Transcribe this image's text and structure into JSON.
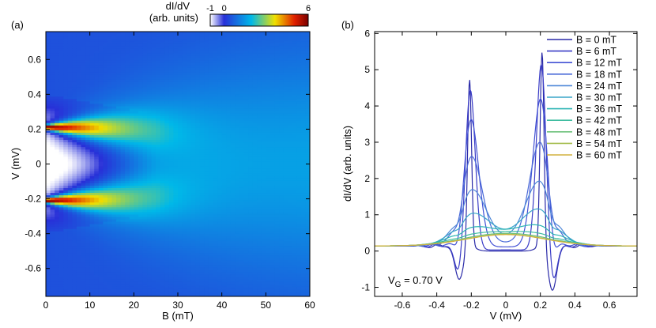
{
  "chart_data": [
    {
      "type": "heatmap",
      "panel_label": "(a)",
      "xlabel": "B (mT)",
      "ylabel": "V (mV)",
      "xlim": [
        0,
        60
      ],
      "ylim": [
        -0.76,
        0.76
      ],
      "x_ticks": [
        0,
        10,
        20,
        30,
        40,
        50,
        60
      ],
      "x_tick_labels": [
        "0",
        "10",
        "20",
        "30",
        "40",
        "50",
        "60"
      ],
      "y_ticks": [
        -0.6,
        -0.4,
        -0.2,
        0,
        0.2,
        0.4,
        0.6
      ],
      "y_tick_labels": [
        "-0.6",
        "-0.4",
        "-0.2",
        "0",
        "0.2",
        "0.4",
        "0.6"
      ],
      "colorbar": {
        "title_line1": "dI/dV",
        "title_line2": "(arb. units)",
        "range": [
          -1,
          6
        ],
        "tick_labels": [
          "-1",
          "0",
          "6"
        ],
        "tick_values": [
          -1,
          0,
          6
        ],
        "colors": [
          "#ffffff",
          "#2830d8",
          "#00b8e8",
          "#f0e000",
          "#e02000",
          "#7a0000"
        ]
      },
      "peak_positions_mV": [
        0.21,
        -0.21
      ],
      "peak_max_value": 6,
      "peak_fade_B_mT": 30,
      "peak_broadening": {
        "sigma0_mV": 0.013,
        "sigma_growth_mV_per_mT": 0.0045
      },
      "gap_region": {
        "half_width_mV": 0.4,
        "closes_at_mT": 25,
        "value": -1
      },
      "background_value": 0.45
    },
    {
      "type": "line",
      "panel_label": "(b)",
      "xlabel": "V (mV)",
      "ylabel": "dI/dV (arb. units)",
      "xlim": [
        -0.76,
        0.76
      ],
      "ylim": [
        -1.25,
        6.05
      ],
      "x_ticks": [
        -0.6,
        -0.4,
        -0.2,
        0,
        0.2,
        0.4,
        0.6
      ],
      "x_tick_labels": [
        "-0.6",
        "-0.4",
        "-0.2",
        "0",
        "0.2",
        "0.4",
        "0.6"
      ],
      "y_ticks": [
        -1,
        0,
        1,
        2,
        3,
        4,
        5,
        6
      ],
      "y_tick_labels": [
        "-1",
        "0",
        "1",
        "2",
        "3",
        "4",
        "5",
        "6"
      ],
      "annotation": {
        "text_main": "V",
        "text_sub": "G",
        "text_rest": " = 0.70 V"
      },
      "legend_placement": "top-right",
      "peak_positions_mV": [
        -0.21,
        0.21
      ],
      "B_zero_peak_heights": [
        4.78,
        5.55
      ],
      "B_zero_dip_depths": [
        -0.78,
        -1.08
      ],
      "baseline": 0.14,
      "central_bump_height": 0.45,
      "series": [
        {
          "name": "B = 0 mT",
          "B_mT": 0,
          "color": "#2a2aa8"
        },
        {
          "name": "B = 6 mT",
          "B_mT": 6,
          "color": "#3a3cc6"
        },
        {
          "name": "B = 12 mT",
          "B_mT": 12,
          "color": "#4150d4"
        },
        {
          "name": "B = 18 mT",
          "B_mT": 18,
          "color": "#4a6ad8"
        },
        {
          "name": "B = 24 mT",
          "B_mT": 24,
          "color": "#4f88d8"
        },
        {
          "name": "B = 30 mT",
          "B_mT": 30,
          "color": "#3aa6c8"
        },
        {
          "name": "B = 36 mT",
          "B_mT": 36,
          "color": "#2ab4b4"
        },
        {
          "name": "B = 42 mT",
          "B_mT": 42,
          "color": "#3ebca0"
        },
        {
          "name": "B = 48 mT",
          "B_mT": 48,
          "color": "#6cc07a"
        },
        {
          "name": "B = 54 mT",
          "B_mT": 54,
          "color": "#a6be50"
        },
        {
          "name": "B = 60 mT",
          "B_mT": 60,
          "color": "#d2b23e"
        }
      ]
    }
  ]
}
